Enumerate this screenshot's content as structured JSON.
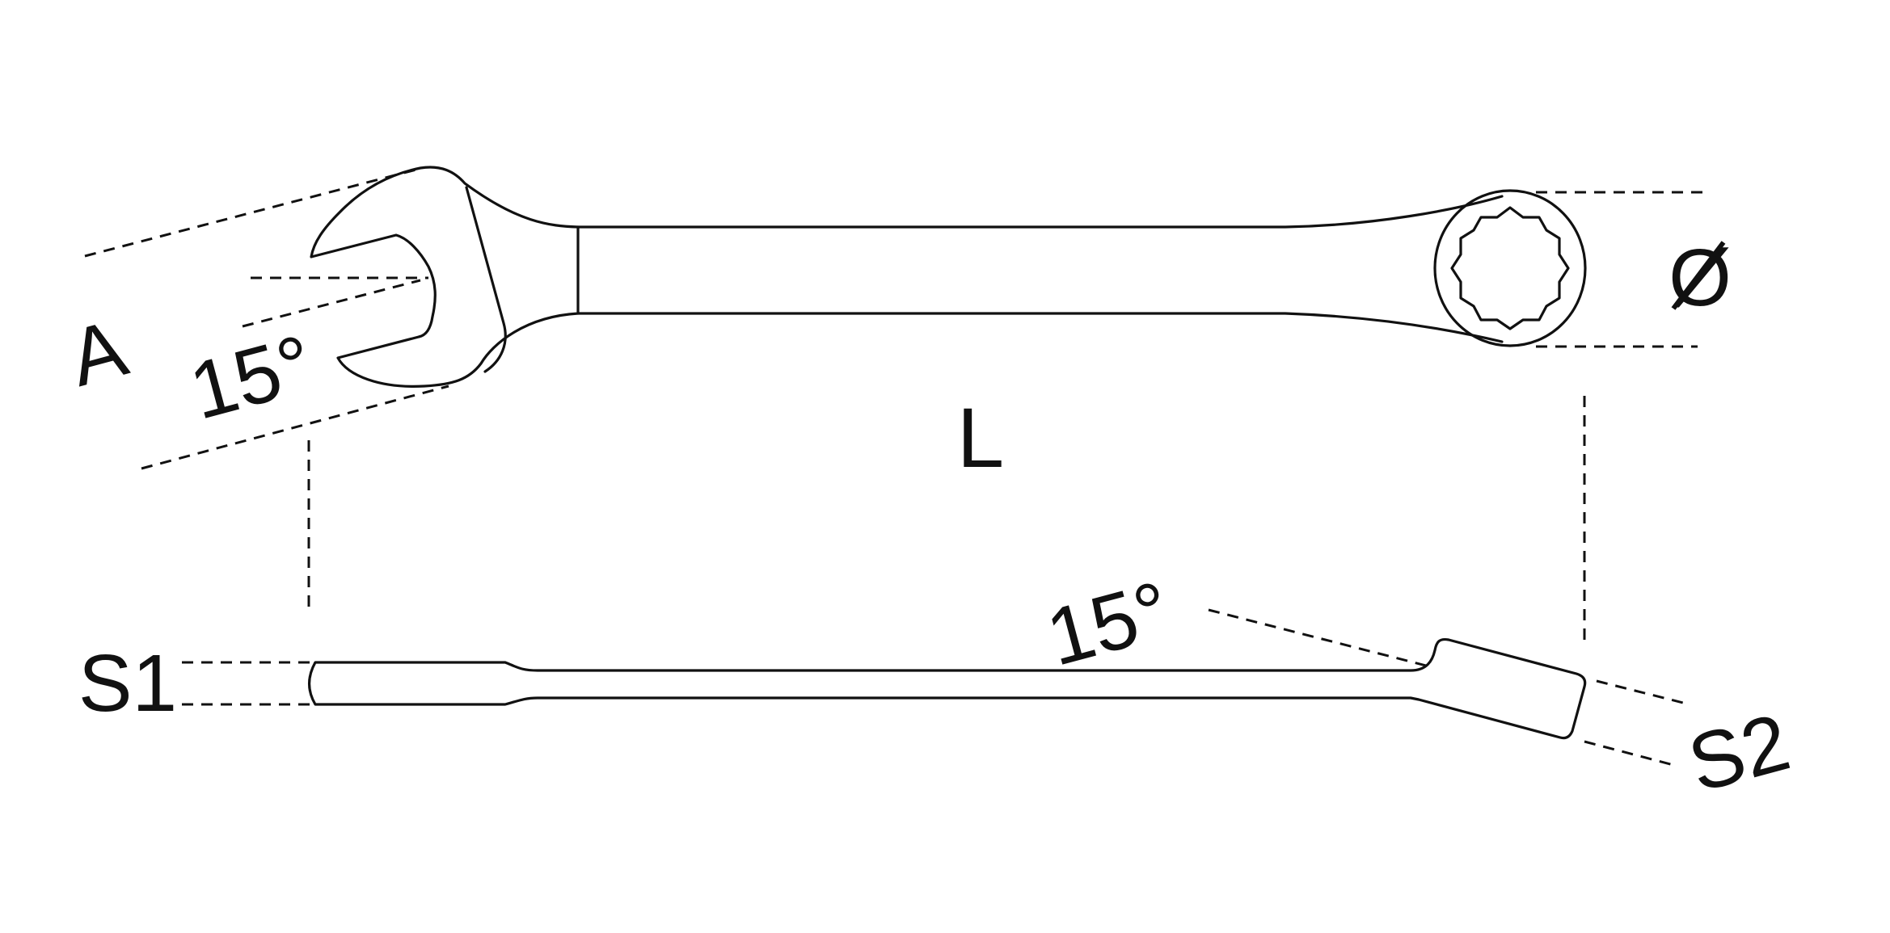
{
  "labels": {
    "open_end_size": "A",
    "open_end_angle": "15°",
    "length": "L",
    "ring_diameter": "Ø",
    "thickness_open_end": "S1",
    "thickness_ring_end": "S2",
    "offset_angle": "15°"
  },
  "colors": {
    "line": "#111111",
    "background": "#ffffff"
  }
}
